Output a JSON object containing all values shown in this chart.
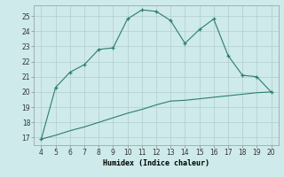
{
  "xlabel": "Humidex (Indice chaleur)",
  "x": [
    4,
    5,
    6,
    7,
    8,
    9,
    10,
    11,
    12,
    13,
    14,
    15,
    16,
    17,
    18,
    19,
    20
  ],
  "y_main": [
    16.9,
    20.3,
    21.3,
    21.8,
    22.8,
    22.9,
    24.8,
    25.4,
    25.3,
    24.7,
    23.2,
    24.1,
    24.8,
    22.4,
    21.1,
    21.0,
    20.0
  ],
  "y_line": [
    16.9,
    17.15,
    17.45,
    17.7,
    18.0,
    18.3,
    18.6,
    18.85,
    19.15,
    19.4,
    19.45,
    19.55,
    19.65,
    19.75,
    19.85,
    19.95,
    20.0
  ],
  "xlim": [
    3.5,
    20.5
  ],
  "ylim": [
    16.5,
    25.7
  ],
  "yticks": [
    17,
    18,
    19,
    20,
    21,
    22,
    23,
    24,
    25
  ],
  "xticks": [
    4,
    5,
    6,
    7,
    8,
    9,
    10,
    11,
    12,
    13,
    14,
    15,
    16,
    17,
    18,
    19,
    20
  ],
  "line_color": "#2d7d6e",
  "bg_color": "#ceeaea",
  "grid_color": "#b0cccc"
}
